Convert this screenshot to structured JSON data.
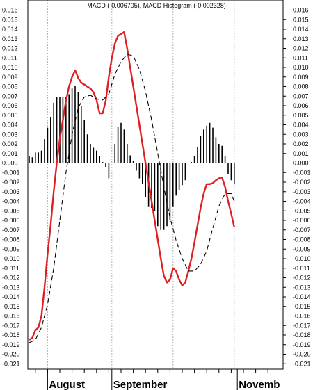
{
  "chart_data": {
    "type": "line",
    "title": "MACD (-0.006705), MACD Histogram (-0.002328)",
    "ylim": [
      -0.021,
      0.016
    ],
    "y_ticks": [
      0.016,
      0.015,
      0.014,
      0.013,
      0.012,
      0.011,
      0.01,
      0.009,
      0.008,
      0.007,
      0.006,
      0.005,
      0.004,
      0.003,
      0.002,
      0.001,
      0.0,
      -0.001,
      -0.002,
      -0.003,
      -0.004,
      -0.005,
      -0.006,
      -0.007,
      -0.008,
      -0.009,
      -0.01,
      -0.011,
      -0.012,
      -0.013,
      -0.014,
      -0.015,
      -0.016,
      -0.017,
      -0.018,
      -0.019,
      -0.02,
      -0.021
    ],
    "y_tick_labels": [
      "0.016",
      "0.015",
      "0.014",
      "0.013",
      "0.012",
      "0.011",
      "0.010",
      "0.009",
      "0.008",
      "0.007",
      "0.006",
      "0.005",
      "0.004",
      "0.003",
      "0.002",
      "0.001",
      "0.000",
      "-0.001",
      "-0.002",
      "-0.003",
      "-0.004",
      "-0.005",
      "-0.006",
      "-0.007",
      "-0.008",
      "-0.009",
      "-0.010",
      "-0.011",
      "-0.012",
      "-0.013",
      "-0.014",
      "-0.015",
      "-0.016",
      "-0.017",
      "-0.018",
      "-0.019",
      "-0.020",
      "-0.021"
    ],
    "x_range": [
      0,
      80
    ],
    "month_labels": [
      {
        "label": "August",
        "x": 6
      },
      {
        "label": "September",
        "x": 27
      },
      {
        "label": "Novemb",
        "x": 68
      }
    ],
    "vertical_gridlines_x": [
      6,
      27,
      47,
      67
    ],
    "grid": true,
    "series": [
      {
        "color": "#e02020",
        "style": "solid",
        "points": [
          [
            0,
            -0.0185
          ],
          [
            1,
            -0.0183
          ],
          [
            2,
            -0.0175
          ],
          [
            3,
            -0.0172
          ],
          [
            4,
            -0.016
          ],
          [
            5,
            -0.013
          ],
          [
            6,
            -0.0095
          ],
          [
            7,
            -0.0065
          ],
          [
            8,
            -0.003
          ],
          [
            9,
            0.0
          ],
          [
            10,
            0.0025
          ],
          [
            11,
            0.0045
          ],
          [
            12,
            0.0065
          ],
          [
            13,
            0.008
          ],
          [
            14,
            0.009
          ],
          [
            15,
            0.0097
          ],
          [
            16,
            0.0089
          ],
          [
            17,
            0.0084
          ],
          [
            18,
            0.0082
          ],
          [
            19,
            0.008
          ],
          [
            20,
            0.0078
          ],
          [
            21,
            0.0074
          ],
          [
            22,
            0.0066
          ],
          [
            23,
            0.0052
          ],
          [
            24,
            0.0052
          ],
          [
            25,
            0.0065
          ],
          [
            26,
            0.009
          ],
          [
            27,
            0.011
          ],
          [
            28,
            0.0125
          ],
          [
            29,
            0.0133
          ],
          [
            30,
            0.0135
          ],
          [
            31,
            0.0137
          ],
          [
            32,
            0.012
          ],
          [
            33,
            0.01
          ],
          [
            34,
            0.008
          ],
          [
            35,
            0.006
          ],
          [
            36,
            0.004
          ],
          [
            37,
            0.002
          ],
          [
            38,
            0.0
          ],
          [
            39,
            -0.002
          ],
          [
            40,
            -0.004
          ],
          [
            41,
            -0.006
          ],
          [
            42,
            -0.008
          ],
          [
            43,
            -0.01
          ],
          [
            44,
            -0.0118
          ],
          [
            45,
            -0.0125
          ],
          [
            46,
            -0.0122
          ],
          [
            47,
            -0.011
          ],
          [
            48,
            -0.0113
          ],
          [
            49,
            -0.0122
          ],
          [
            50,
            -0.0128
          ],
          [
            51,
            -0.0125
          ],
          [
            52,
            -0.0113
          ],
          [
            53,
            -0.01
          ],
          [
            54,
            -0.0083
          ],
          [
            55,
            -0.0065
          ],
          [
            56,
            -0.0047
          ],
          [
            57,
            -0.0032
          ],
          [
            58,
            -0.0022
          ],
          [
            59,
            -0.0022
          ],
          [
            60,
            -0.0021
          ],
          [
            61,
            -0.0018
          ],
          [
            62,
            -0.0016
          ],
          [
            63,
            -0.0015
          ],
          [
            64,
            -0.0025
          ],
          [
            65,
            -0.004
          ],
          [
            66,
            -0.0053
          ],
          [
            67,
            -0.0067
          ]
        ]
      },
      {
        "color": "#000000",
        "style": "dashed",
        "points": [
          [
            0,
            -0.0188
          ],
          [
            2,
            -0.0185
          ],
          [
            4,
            -0.0172
          ],
          [
            6,
            -0.0148
          ],
          [
            8,
            -0.011
          ],
          [
            10,
            -0.006
          ],
          [
            12,
            -0.001
          ],
          [
            14,
            0.003
          ],
          [
            16,
            0.0058
          ],
          [
            18,
            0.0069
          ],
          [
            20,
            0.0071
          ],
          [
            22,
            0.0067
          ],
          [
            24,
            0.0066
          ],
          [
            26,
            0.0072
          ],
          [
            28,
            0.0093
          ],
          [
            30,
            0.0106
          ],
          [
            32,
            0.0114
          ],
          [
            34,
            0.0112
          ],
          [
            36,
            0.0098
          ],
          [
            38,
            0.0075
          ],
          [
            40,
            0.0045
          ],
          [
            42,
            0.001
          ],
          [
            44,
            -0.0025
          ],
          [
            46,
            -0.0057
          ],
          [
            48,
            -0.0081
          ],
          [
            50,
            -0.01
          ],
          [
            52,
            -0.0113
          ],
          [
            54,
            -0.0113
          ],
          [
            56,
            -0.0106
          ],
          [
            58,
            -0.0092
          ],
          [
            60,
            -0.0068
          ],
          [
            62,
            -0.0045
          ],
          [
            64,
            -0.0032
          ],
          [
            66,
            -0.0032
          ],
          [
            67,
            -0.004
          ]
        ]
      }
    ],
    "histogram": [
      0.0007,
      0.0006,
      0.0011,
      0.0011,
      0.0013,
      0.0025,
      0.0037,
      0.0048,
      0.0063,
      0.0069,
      0.0069,
      0.0069,
      0.0069,
      0.0072,
      0.0078,
      0.0081,
      0.0074,
      0.006,
      0.0045,
      0.003,
      0.002,
      0.0016,
      0.0013,
      0.0007,
      0.0001,
      -0.0004,
      -0.0016,
      0.0,
      0.002,
      0.0038,
      0.0042,
      0.0035,
      0.002,
      0.0008,
      0.0002,
      -0.0008,
      -0.0016,
      -0.0022,
      -0.0036,
      -0.0046,
      -0.0047,
      -0.005,
      -0.0066,
      -0.007,
      -0.007,
      -0.0066,
      -0.006,
      -0.0046,
      -0.0034,
      -0.0028,
      -0.0023,
      -0.0018,
      0.0,
      0.0001,
      0.0007,
      0.0017,
      0.0028,
      0.0035,
      0.0039,
      0.0042,
      0.0037,
      0.0027,
      0.002,
      0.0018,
      0.0007,
      -0.0012,
      -0.0018,
      -0.0022
    ]
  }
}
